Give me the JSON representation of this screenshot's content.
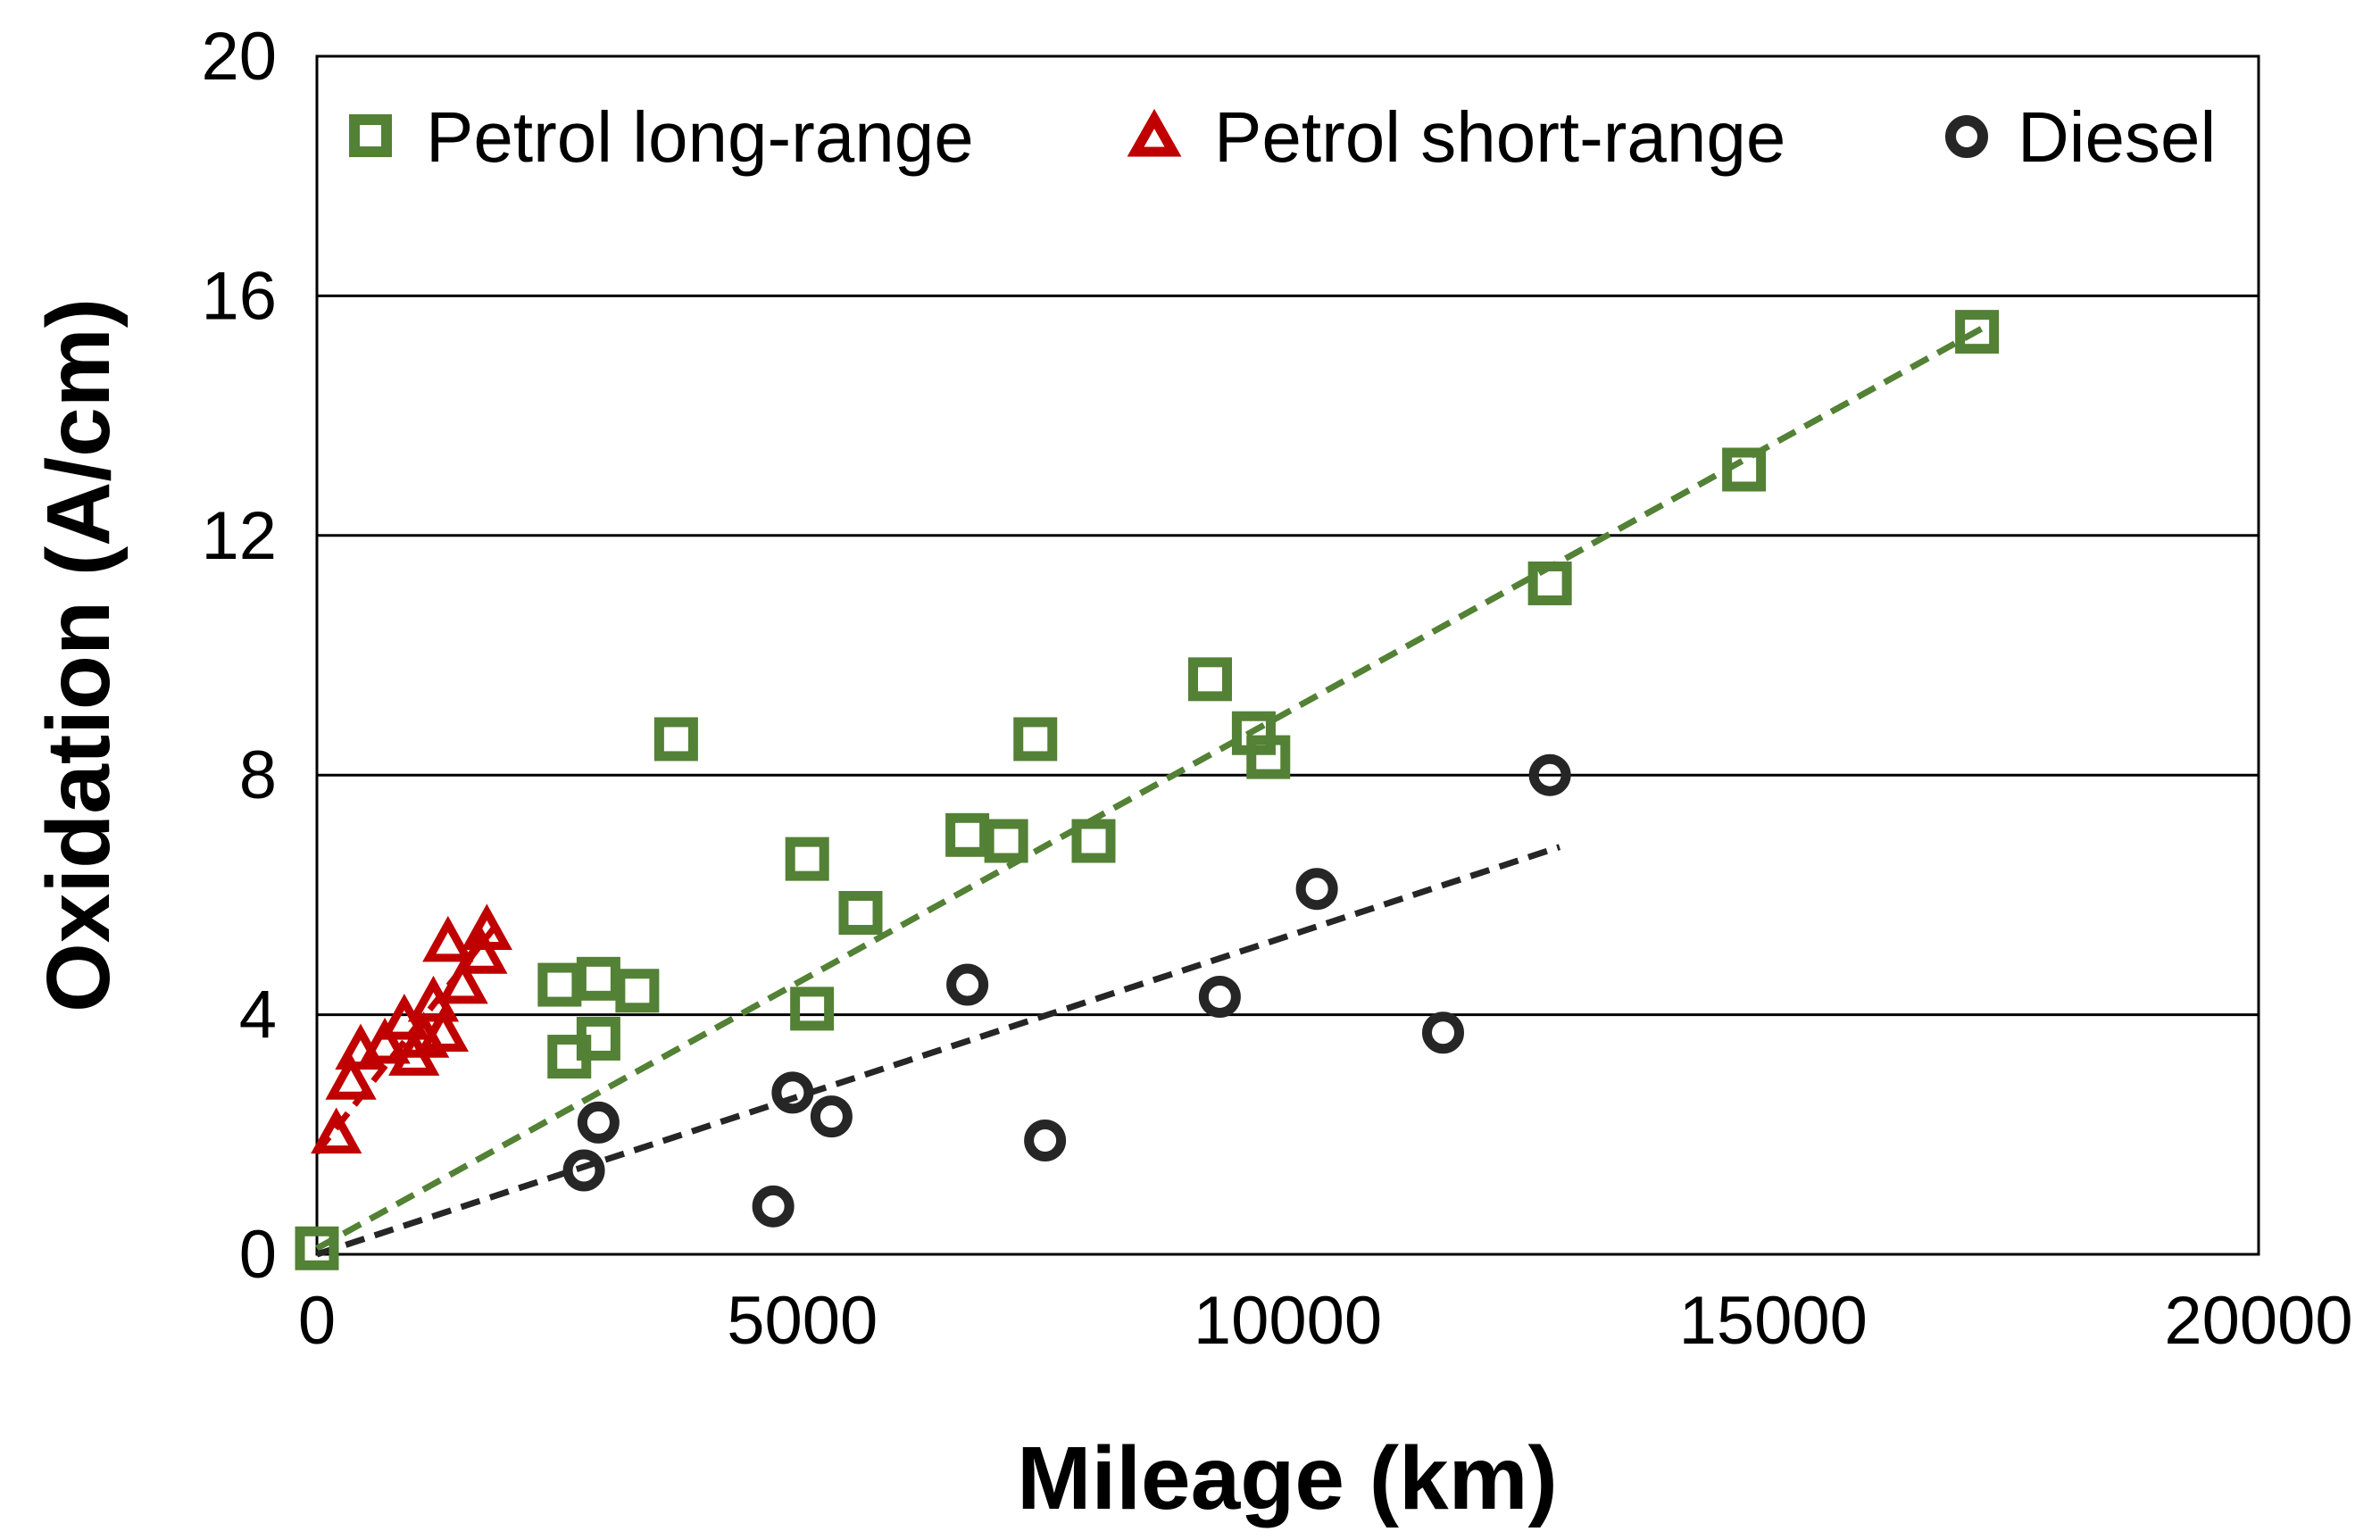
{
  "chart_data": {
    "type": "scatter",
    "title": "",
    "xlabel": "Mileage (km)",
    "ylabel": "Oxidation (A/cm)",
    "xlim": [
      0,
      20000
    ],
    "ylim": [
      0,
      20
    ],
    "xticks": [
      0,
      5000,
      10000,
      15000,
      20000
    ],
    "yticks": [
      0,
      4,
      8,
      12,
      16,
      20
    ],
    "xtick_labels": [
      "0",
      "5000",
      "10000",
      "15000",
      "20000"
    ],
    "ytick_labels": [
      "0",
      "4",
      "8",
      "12",
      "16",
      "20"
    ],
    "grid": "horizontal",
    "legend_position": "top",
    "series": [
      {
        "name": "Petrol long-range",
        "marker": "square",
        "color": "#538135",
        "points": [
          [
            0,
            0.1
          ],
          [
            2500,
            4.5
          ],
          [
            2600,
            3.3
          ],
          [
            2900,
            4.6
          ],
          [
            2900,
            3.6
          ],
          [
            3300,
            4.4
          ],
          [
            3700,
            8.6
          ],
          [
            5050,
            6.6
          ],
          [
            5100,
            4.1
          ],
          [
            5600,
            5.7
          ],
          [
            6700,
            7.0
          ],
          [
            7100,
            6.9
          ],
          [
            7400,
            8.6
          ],
          [
            8000,
            6.9
          ],
          [
            9200,
            9.6
          ],
          [
            9650,
            8.7
          ],
          [
            9800,
            8.3
          ],
          [
            12700,
            11.2
          ],
          [
            14700,
            13.1
          ],
          [
            17100,
            15.4
          ]
        ],
        "trendline": {
          "x": [
            0,
            17200
          ],
          "y": [
            0.1,
            15.5
          ]
        }
      },
      {
        "name": "Petrol short-range",
        "marker": "triangle",
        "color": "#c00000",
        "points": [
          [
            200,
            2.0
          ],
          [
            350,
            2.9
          ],
          [
            450,
            3.4
          ],
          [
            700,
            3.5
          ],
          [
            900,
            3.9
          ],
          [
            1000,
            3.3
          ],
          [
            1100,
            3.6
          ],
          [
            1200,
            4.2
          ],
          [
            1300,
            3.7
          ],
          [
            1350,
            5.2
          ],
          [
            1500,
            4.5
          ],
          [
            1700,
            5.0
          ],
          [
            1750,
            5.4
          ]
        ],
        "trendline": {
          "x": [
            0,
            1850
          ],
          "y": [
            1.7,
            5.5
          ]
        }
      },
      {
        "name": "Diesel",
        "marker": "circle",
        "color": "#262626",
        "points": [
          [
            2750,
            1.4
          ],
          [
            2900,
            2.2
          ],
          [
            4700,
            0.8
          ],
          [
            4900,
            2.7
          ],
          [
            5300,
            2.3
          ],
          [
            6700,
            4.5
          ],
          [
            7500,
            1.9
          ],
          [
            9300,
            4.3
          ],
          [
            10300,
            6.1
          ],
          [
            11600,
            3.7
          ],
          [
            12700,
            8.0
          ]
        ],
        "trendline": {
          "x": [
            0,
            12800
          ],
          "y": [
            0,
            6.8
          ]
        }
      }
    ]
  }
}
